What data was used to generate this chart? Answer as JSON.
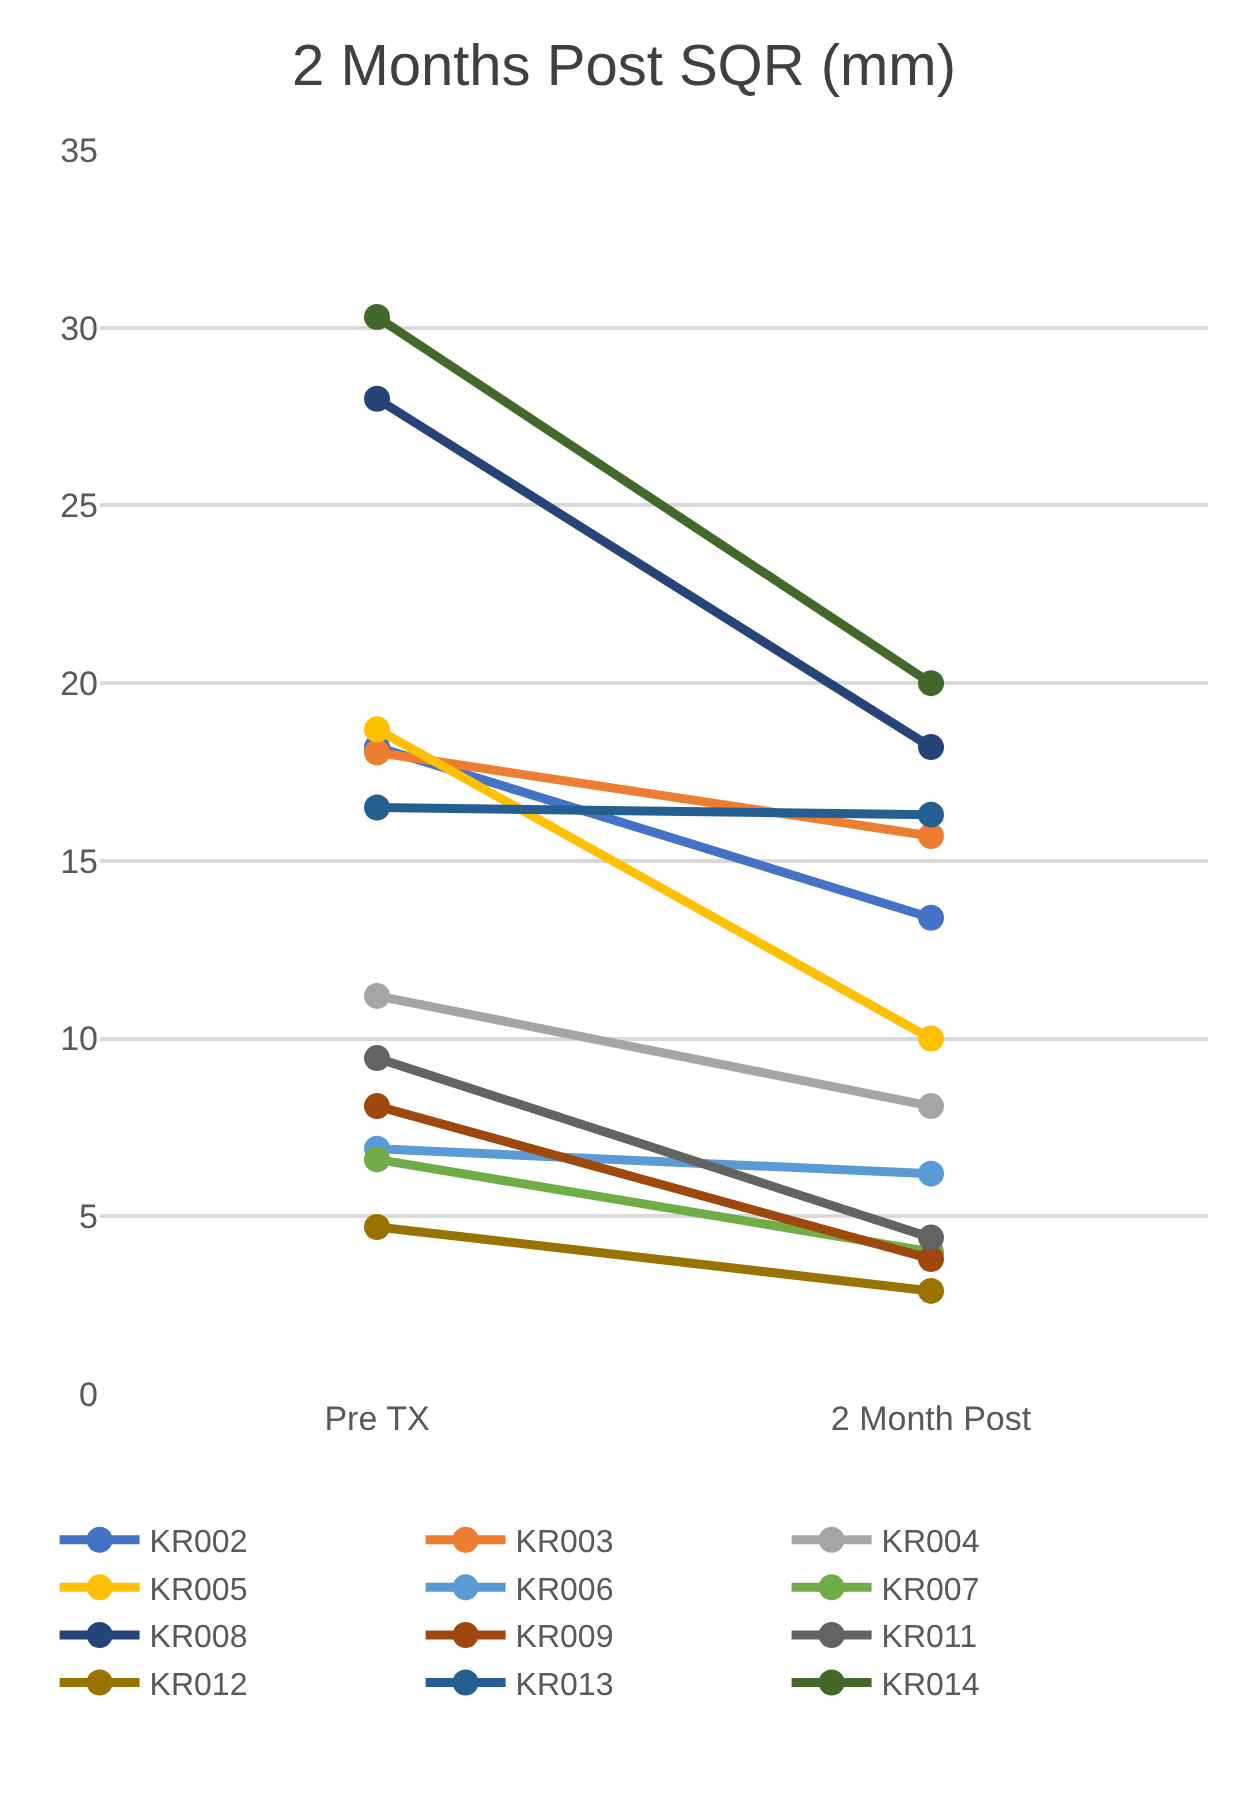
{
  "chart_data": {
    "type": "line",
    "title": "2 Months Post SQR (mm)",
    "categories": [
      "Pre TX",
      "2 Month Post"
    ],
    "ylim": [
      0,
      35
    ],
    "yticks": [
      0,
      5,
      10,
      15,
      20,
      25,
      30,
      35
    ],
    "grid": "y",
    "legend": "bottom",
    "marker": "circle",
    "line_style": "solid",
    "series": [
      {
        "name": "KR002",
        "color": "#4472c4",
        "values": [
          18.2,
          13.4
        ]
      },
      {
        "name": "KR003",
        "color": "#ed7d31",
        "values": [
          18.05,
          15.7
        ]
      },
      {
        "name": "KR004",
        "color": "#a5a5a5",
        "values": [
          11.2,
          8.1
        ]
      },
      {
        "name": "KR005",
        "color": "#ffc000",
        "values": [
          18.7,
          10.0
        ]
      },
      {
        "name": "KR006",
        "color": "#5b9bd5",
        "values": [
          6.9,
          6.2
        ]
      },
      {
        "name": "KR007",
        "color": "#70ad47",
        "values": [
          6.6,
          4.0
        ]
      },
      {
        "name": "KR008",
        "color": "#264478",
        "values": [
          28.0,
          18.2
        ]
      },
      {
        "name": "KR009",
        "color": "#9e480e",
        "values": [
          8.1,
          3.8
        ]
      },
      {
        "name": "KR011",
        "color": "#636363",
        "values": [
          9.45,
          4.4
        ]
      },
      {
        "name": "KR012",
        "color": "#997300",
        "values": [
          4.7,
          2.9
        ]
      },
      {
        "name": "KR013",
        "color": "#255e91",
        "values": [
          16.5,
          16.3
        ]
      },
      {
        "name": "KR014",
        "color": "#43682b",
        "values": [
          30.3,
          20.0
        ]
      }
    ]
  }
}
